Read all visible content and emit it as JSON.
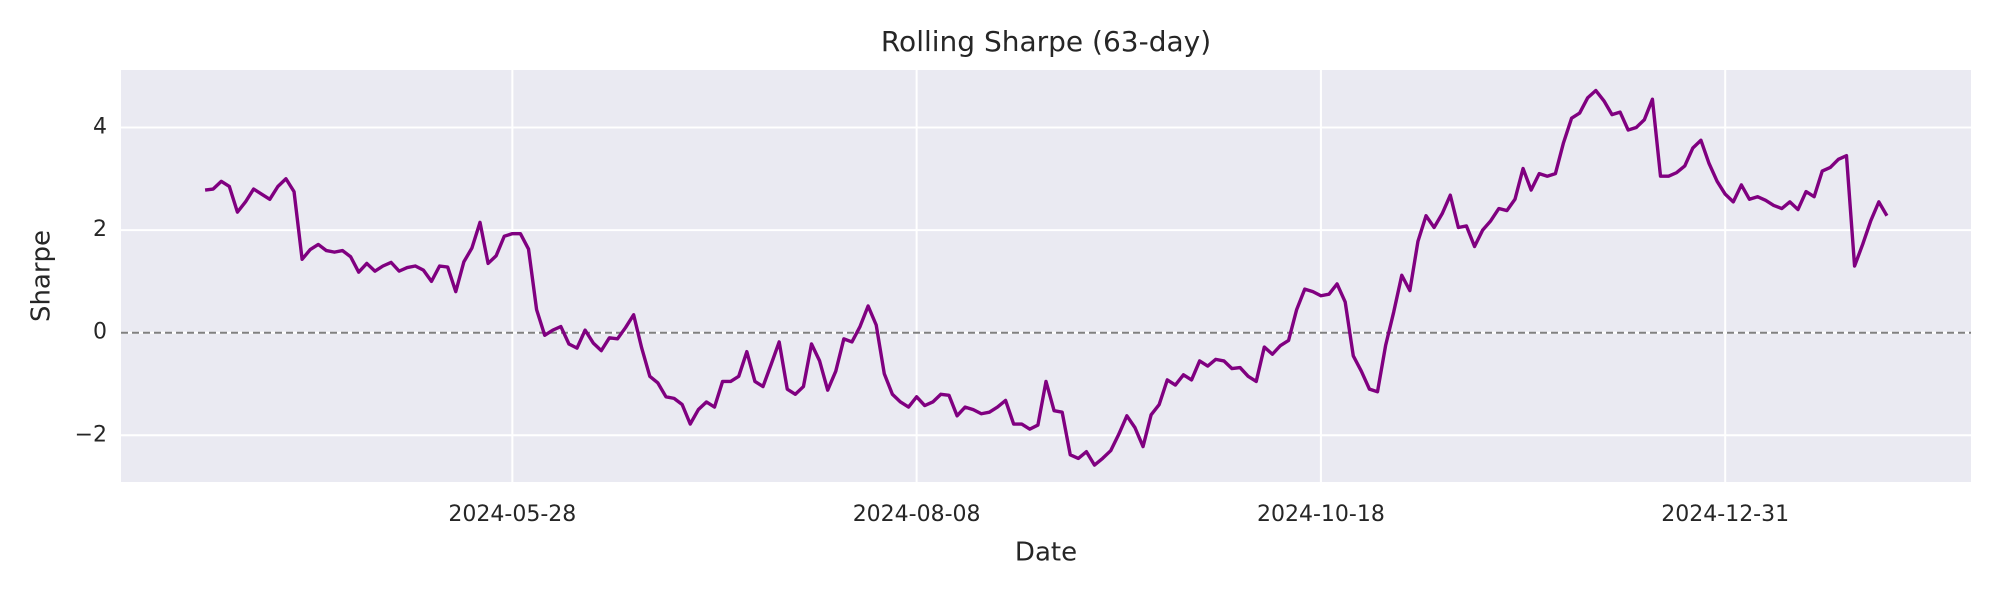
{
  "chart_data": {
    "type": "line",
    "title": "Rolling Sharpe (63-day)",
    "x_label": "Date",
    "y_label": "Sharpe",
    "categories": [
      null,
      null,
      null,
      null,
      null,
      null,
      null,
      null,
      null,
      null,
      null,
      null,
      null,
      null,
      null,
      null,
      null,
      null,
      null,
      null,
      null,
      null,
      null,
      null,
      null,
      null,
      null,
      null,
      null,
      null,
      null,
      null,
      null,
      null,
      null,
      null,
      null,
      null,
      "2024-05-28",
      null,
      null,
      null,
      null,
      null,
      null,
      null,
      null,
      null,
      null,
      null,
      null,
      null,
      null,
      null,
      null,
      null,
      null,
      null,
      null,
      null,
      null,
      null,
      null,
      null,
      null,
      null,
      null,
      null,
      null,
      null,
      null,
      null,
      null,
      null,
      null,
      null,
      null,
      null,
      null,
      null,
      null,
      null,
      null,
      null,
      null,
      null,
      null,
      null,
      "2024-08-08",
      null,
      null,
      null,
      null,
      null,
      null,
      null,
      null,
      null,
      null,
      null,
      null,
      null,
      null,
      null,
      null,
      null,
      null,
      null,
      null,
      null,
      null,
      null,
      null,
      null,
      null,
      null,
      null,
      null,
      null,
      null,
      null,
      null,
      null,
      null,
      null,
      null,
      null,
      null,
      null,
      null,
      null,
      null,
      null,
      null,
      null,
      null,
      null,
      null,
      "2024-10-18",
      null,
      null,
      null,
      null,
      null,
      null,
      null,
      null,
      null,
      null,
      null,
      null,
      null,
      null,
      null,
      null,
      null,
      null,
      null,
      null,
      null,
      null,
      null,
      null,
      null,
      null,
      null,
      null,
      null,
      null,
      null,
      null,
      null,
      null,
      null,
      null,
      null,
      null,
      null,
      null,
      null,
      null,
      null,
      null,
      null,
      null,
      null,
      null,
      null,
      "2024-12-31",
      null,
      null,
      null,
      null,
      null,
      null,
      null,
      null,
      null,
      null,
      null,
      null,
      null,
      null,
      null,
      null,
      null,
      null,
      null,
      null
    ],
    "values": [
      2.78,
      2.8,
      2.95,
      2.85,
      2.35,
      2.55,
      2.8,
      2.7,
      2.6,
      2.85,
      3.0,
      2.75,
      1.43,
      1.62,
      1.72,
      1.6,
      1.57,
      1.6,
      1.48,
      1.18,
      1.35,
      1.2,
      1.3,
      1.37,
      1.2,
      1.27,
      1.3,
      1.22,
      1.0,
      1.3,
      1.28,
      0.8,
      1.38,
      1.65,
      2.15,
      1.35,
      1.5,
      1.88,
      1.93,
      1.93,
      1.63,
      0.45,
      -0.05,
      0.05,
      0.12,
      -0.22,
      -0.3,
      0.05,
      -0.2,
      -0.35,
      -0.1,
      -0.12,
      0.1,
      0.35,
      -0.3,
      -0.85,
      -0.98,
      -1.25,
      -1.28,
      -1.4,
      -1.78,
      -1.5,
      -1.35,
      -1.45,
      -0.95,
      -0.95,
      -0.85,
      -0.37,
      -0.95,
      -1.05,
      -0.62,
      -0.18,
      -1.1,
      -1.2,
      -1.05,
      -0.22,
      -0.55,
      -1.12,
      -0.75,
      -0.12,
      -0.18,
      0.12,
      0.52,
      0.15,
      -0.8,
      -1.2,
      -1.35,
      -1.45,
      -1.25,
      -1.42,
      -1.35,
      -1.2,
      -1.22,
      -1.62,
      -1.45,
      -1.5,
      -1.58,
      -1.55,
      -1.45,
      -1.32,
      -1.78,
      -1.78,
      -1.88,
      -1.8,
      -0.95,
      -1.52,
      -1.55,
      -2.38,
      -2.45,
      -2.32,
      -2.58,
      -2.45,
      -2.3,
      -1.98,
      -1.62,
      -1.85,
      -2.22,
      -1.6,
      -1.4,
      -0.92,
      -1.02,
      -0.82,
      -0.92,
      -0.55,
      -0.65,
      -0.52,
      -0.55,
      -0.7,
      -0.68,
      -0.85,
      -0.95,
      -0.28,
      -0.42,
      -0.25,
      -0.15,
      0.45,
      0.85,
      0.8,
      0.72,
      0.75,
      0.95,
      0.6,
      -0.45,
      -0.75,
      -1.1,
      -1.15,
      -0.25,
      0.4,
      1.12,
      0.82,
      1.78,
      2.28,
      2.05,
      2.32,
      2.68,
      2.05,
      2.08,
      1.68,
      2.0,
      2.18,
      2.42,
      2.38,
      2.6,
      3.2,
      2.78,
      3.1,
      3.05,
      3.1,
      3.7,
      4.18,
      4.28,
      4.58,
      4.72,
      4.52,
      4.25,
      4.3,
      3.95,
      4.0,
      4.15,
      4.55,
      3.05,
      3.05,
      3.12,
      3.25,
      3.6,
      3.75,
      3.3,
      2.95,
      2.7,
      2.55,
      2.88,
      2.6,
      2.65,
      2.58,
      2.48,
      2.42,
      2.55,
      2.4,
      2.75,
      2.65,
      3.15,
      3.22,
      3.38,
      3.45,
      1.3,
      1.72,
      2.18,
      2.55,
      2.28
    ],
    "color": "#800080",
    "xlim": [
      -10.4,
      218.4
    ],
    "ylim": [
      -2.91,
      5.12
    ],
    "yticks": [
      {
        "value": -2,
        "label": "−2"
      },
      0,
      2,
      4
    ],
    "grid": true,
    "reference_line": {
      "value": 0,
      "color": "#808080",
      "dashed": true
    }
  }
}
